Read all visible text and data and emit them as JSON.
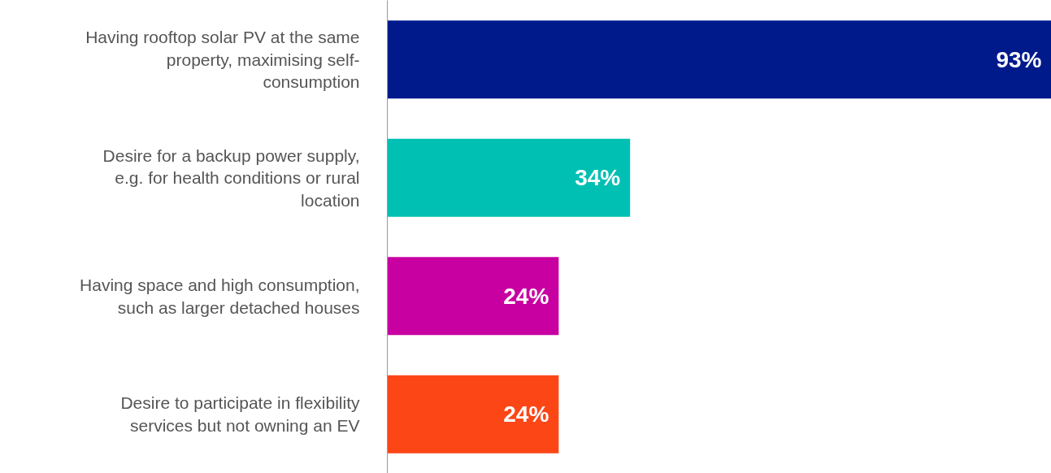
{
  "chart_data": {
    "type": "bar",
    "orientation": "horizontal",
    "categories": [
      "Having rooftop solar PV at the same property, maximising self-consumption",
      "Desire for a backup power supply, e.g. for health conditions or rural location",
      "Having space and high consumption, such as larger detached houses",
      "Desire to participate in flexibility services but not owning an EV"
    ],
    "values": [
      93,
      34,
      24,
      24
    ],
    "colors": [
      "#001a8c",
      "#00bfb3",
      "#c800a1",
      "#fc4616"
    ],
    "value_labels": [
      "93%",
      "34%",
      "24%",
      "24%"
    ],
    "xlim": [
      0,
      93
    ],
    "grid": false
  }
}
